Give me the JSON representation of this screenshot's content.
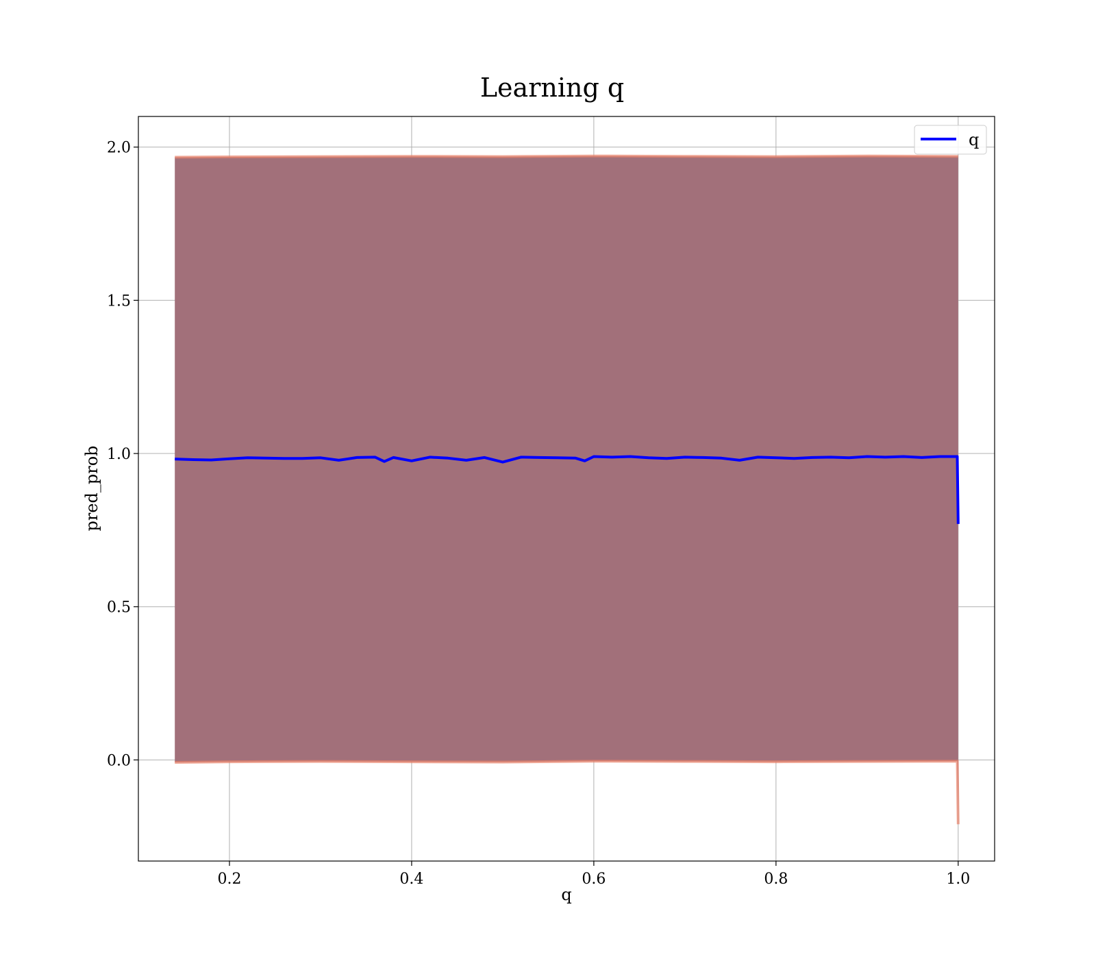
{
  "chart_data": {
    "type": "line",
    "title": "Learning q",
    "xlabel": "q",
    "ylabel": "pred_prob",
    "xlim": [
      0.1,
      1.04
    ],
    "ylim": [
      -0.33,
      2.1
    ],
    "xticks": [
      0.2,
      0.4,
      0.6,
      0.8,
      1.0
    ],
    "xtick_labels": [
      "0.2",
      "0.4",
      "0.6",
      "0.8",
      "1.0"
    ],
    "yticks": [
      0.0,
      0.5,
      1.0,
      1.5,
      2.0
    ],
    "ytick_labels": [
      "0.0",
      "0.5",
      "1.0",
      "1.5",
      "2.0"
    ],
    "grid": true,
    "legend": {
      "placement": "upper right",
      "entries": [
        {
          "name": "q",
          "color": "#0000ff"
        }
      ]
    },
    "series": [
      {
        "name": "q",
        "color": "#0000ff",
        "x": [
          0.14,
          0.16,
          0.18,
          0.2,
          0.22,
          0.24,
          0.26,
          0.28,
          0.3,
          0.32,
          0.34,
          0.36,
          0.37,
          0.38,
          0.4,
          0.42,
          0.44,
          0.46,
          0.48,
          0.5,
          0.52,
          0.54,
          0.56,
          0.58,
          0.59,
          0.6,
          0.62,
          0.64,
          0.66,
          0.68,
          0.7,
          0.72,
          0.74,
          0.76,
          0.78,
          0.8,
          0.82,
          0.84,
          0.86,
          0.88,
          0.9,
          0.92,
          0.94,
          0.96,
          0.98,
          0.999,
          1.0
        ],
        "y": [
          0.982,
          0.98,
          0.979,
          0.983,
          0.986,
          0.985,
          0.984,
          0.984,
          0.986,
          0.978,
          0.987,
          0.988,
          0.974,
          0.987,
          0.976,
          0.988,
          0.985,
          0.978,
          0.987,
          0.972,
          0.988,
          0.987,
          0.986,
          0.985,
          0.976,
          0.99,
          0.988,
          0.99,
          0.986,
          0.984,
          0.988,
          0.987,
          0.985,
          0.978,
          0.988,
          0.986,
          0.984,
          0.987,
          0.988,
          0.986,
          0.99,
          0.988,
          0.99,
          0.987,
          0.99,
          0.99,
          0.77
        ]
      }
    ],
    "band": {
      "fill": "#a2707a",
      "edge_color": "#e8826a",
      "x": [
        0.14,
        0.2,
        0.3,
        0.4,
        0.5,
        0.6,
        0.7,
        0.8,
        0.9,
        0.999,
        1.0
      ],
      "upper": [
        1.967,
        1.968,
        1.969,
        1.97,
        1.969,
        1.971,
        1.97,
        1.969,
        1.971,
        1.97,
        1.97
      ],
      "lower": [
        -0.008,
        -0.006,
        -0.005,
        -0.006,
        -0.007,
        -0.004,
        -0.005,
        -0.006,
        -0.005,
        -0.004,
        -0.21
      ]
    }
  }
}
